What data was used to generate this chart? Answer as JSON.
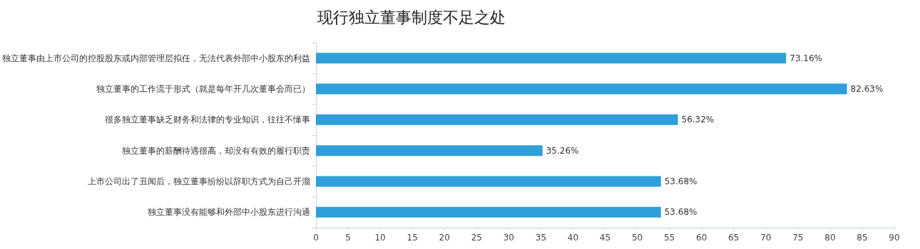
{
  "chart_data": {
    "type": "bar",
    "orientation": "horizontal",
    "title": "现行独立董事制度不足之处",
    "categories": [
      "独立董事由上市公司的控股股东或内部管理层拟任，无法代表外部中小股东的利益",
      "独立董事的工作流于形式（就是每年开几次董事会而已）",
      "很多独立董事缺乏财务和法律的专业知识，往往不懂事",
      "独立董事的薪酬待遇很高，却没有有效的履行职责",
      "上市公司出了丑闻后，独立董事纷纷以辞职方式为自己开溜",
      "独立董事没有能够和外部中小股东进行沟通"
    ],
    "values": [
      73.16,
      82.63,
      56.32,
      35.26,
      53.68,
      53.68
    ],
    "value_labels": [
      "73.16%",
      "82.63%",
      "56.32%",
      "35.26%",
      "53.68%",
      "53.68%"
    ],
    "color": "#2e9fd8",
    "xlim": [
      0,
      90
    ],
    "xticks": [
      0,
      5,
      10,
      15,
      20,
      25,
      30,
      35,
      40,
      45,
      50,
      55,
      60,
      65,
      70,
      75,
      80,
      85,
      90
    ],
    "grid": false
  }
}
